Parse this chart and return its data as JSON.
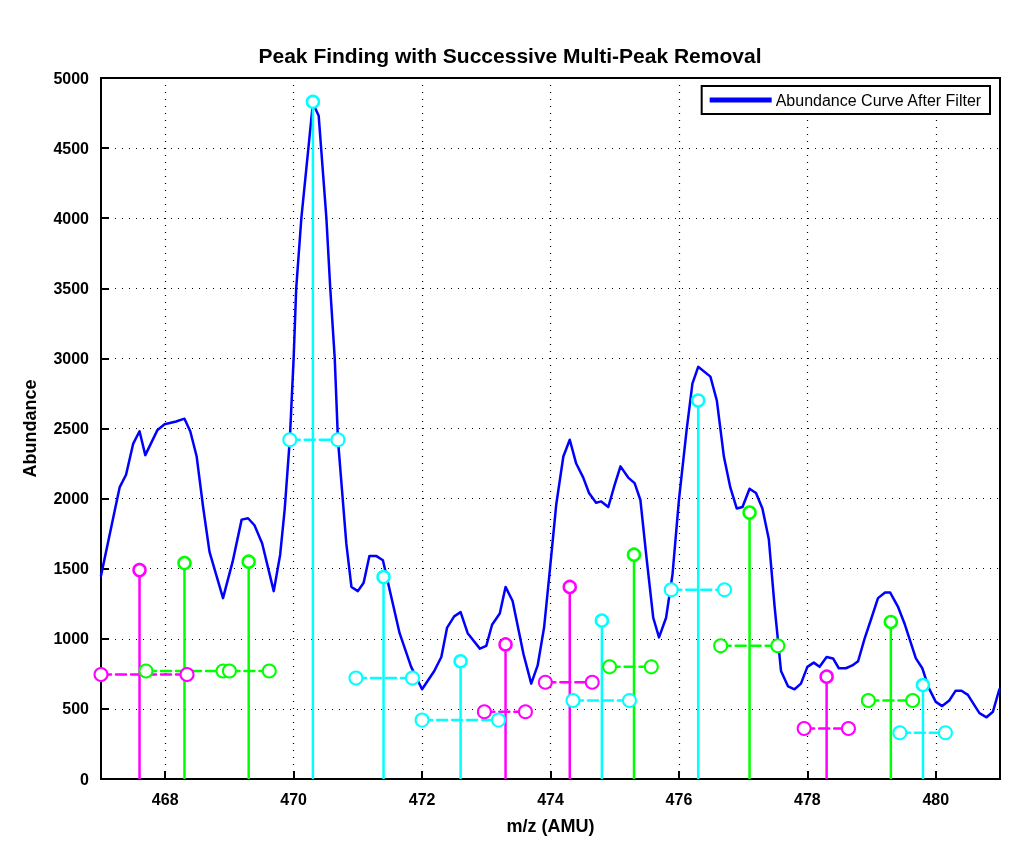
{
  "chart_data": {
    "type": "line",
    "title": "Peak Finding with Successive Multi-Peak Removal",
    "xlabel": "m/z (AMU)",
    "ylabel": "Abundance",
    "xlim": [
      467,
      481
    ],
    "xticks": [
      468,
      470,
      472,
      474,
      476,
      478,
      480
    ],
    "ylim": [
      0,
      5000
    ],
    "yticks": [
      0,
      500,
      1000,
      1500,
      2000,
      2500,
      3000,
      3500,
      4000,
      4500,
      5000
    ],
    "grid": true,
    "legend": "top right",
    "marker": "none",
    "line_style": "solid",
    "series": [
      {
        "name": "Abundance Curve After Filter",
        "color": "#0000ff",
        "x": [
          467.0,
          467.29,
          467.39,
          467.5,
          467.6,
          467.69,
          467.88,
          467.99,
          468.17,
          468.3,
          468.39,
          468.49,
          468.59,
          468.69,
          468.9,
          469.05,
          469.19,
          469.29,
          469.39,
          469.51,
          469.69,
          469.79,
          469.86,
          469.94,
          470.0,
          470.04,
          470.12,
          470.3,
          470.39,
          470.51,
          470.57,
          470.64,
          470.69,
          470.82,
          470.9,
          471.0,
          471.09,
          471.18,
          471.29,
          471.39,
          471.52,
          471.65,
          471.83,
          472.0,
          472.19,
          472.3,
          472.39,
          472.5,
          472.6,
          472.71,
          472.9,
          473.0,
          473.09,
          473.21,
          473.3,
          473.41,
          473.58,
          473.7,
          473.8,
          473.9,
          473.99,
          474.09,
          474.2,
          474.3,
          474.4,
          474.51,
          474.6,
          474.71,
          474.79,
          474.9,
          475.0,
          475.09,
          475.21,
          475.31,
          475.4,
          475.49,
          475.6,
          475.69,
          475.8,
          475.9,
          476.0,
          476.12,
          476.21,
          476.3,
          476.49,
          476.59,
          476.7,
          476.8,
          476.9,
          476.99,
          477.1,
          477.2,
          477.3,
          477.4,
          477.49,
          477.59,
          477.7,
          477.8,
          477.9,
          478.0,
          478.1,
          478.19,
          478.3,
          478.4,
          478.49,
          478.6,
          478.7,
          478.79,
          478.89,
          479.0,
          479.1,
          479.21,
          479.29,
          479.41,
          479.52,
          479.69,
          479.79,
          479.89,
          480.0,
          480.1,
          480.21,
          480.31,
          480.4,
          480.5,
          480.61,
          480.68,
          480.79,
          480.89,
          480.99
        ],
        "values": [
          1450,
          2080,
          2170,
          2390,
          2480,
          2310,
          2490,
          2530,
          2550,
          2570,
          2480,
          2300,
          1940,
          1620,
          1290,
          1550,
          1850,
          1860,
          1810,
          1680,
          1340,
          1600,
          1920,
          2420,
          3000,
          3500,
          4000,
          4820,
          4730,
          4000,
          3500,
          3000,
          2420,
          1680,
          1370,
          1340,
          1400,
          1590,
          1590,
          1560,
          1300,
          1040,
          800,
          640,
          770,
          870,
          1080,
          1160,
          1190,
          1040,
          930,
          950,
          1100,
          1180,
          1370,
          1270,
          890,
          680,
          810,
          1080,
          1490,
          1960,
          2300,
          2420,
          2250,
          2150,
          2040,
          1970,
          1980,
          1940,
          2100,
          2230,
          2150,
          2110,
          1990,
          1600,
          1150,
          1010,
          1150,
          1460,
          1990,
          2490,
          2820,
          2940,
          2870,
          2700,
          2300,
          2080,
          1930,
          1940,
          2070,
          2040,
          1930,
          1710,
          1230,
          770,
          660,
          640,
          680,
          800,
          830,
          800,
          870,
          860,
          790,
          790,
          810,
          840,
          1000,
          1150,
          1290,
          1330,
          1330,
          1230,
          1100,
          860,
          790,
          650,
          550,
          520,
          560,
          630,
          630,
          600,
          520,
          470,
          440,
          480,
          640
        ]
      },
      {
        "type": "lollipop",
        "color": "#ff00ff",
        "marker": "circle",
        "x": [
          467.6,
          473.3,
          474.3,
          478.3
        ],
        "values": [
          1490,
          960,
          1370,
          730
        ]
      },
      {
        "type": "lollipop",
        "color": "#00ff00",
        "marker": "circle",
        "x": [
          468.3,
          469.3,
          475.3,
          477.1,
          479.3
        ],
        "values": [
          1540,
          1550,
          1600,
          1900,
          1120
        ]
      },
      {
        "type": "lollipop",
        "color": "#00ffff",
        "marker": "circle",
        "x": [
          470.3,
          471.4,
          472.6,
          474.8,
          476.3,
          479.8
        ],
        "values": [
          4830,
          1440,
          840,
          1130,
          2700,
          670
        ]
      },
      {
        "type": "line",
        "color": "#ff00ff",
        "marker": "circle",
        "line_style": "dashed",
        "x": [
          467.0,
          468.34
        ],
        "values": [
          745,
          745
        ]
      },
      {
        "type": "line",
        "color": "#ff00ff",
        "marker": "circle",
        "line_style": "dashed",
        "x": [
          472.97,
          473.61
        ],
        "values": [
          480,
          480
        ]
      },
      {
        "type": "line",
        "color": "#ff00ff",
        "marker": "circle",
        "line_style": "dashed",
        "x": [
          473.92,
          474.65
        ],
        "values": [
          690,
          690
        ]
      },
      {
        "type": "line",
        "color": "#ff00ff",
        "marker": "circle",
        "line_style": "dashed",
        "x": [
          477.95,
          478.64
        ],
        "values": [
          360,
          360
        ]
      },
      {
        "type": "line",
        "color": "#00ff00",
        "marker": "circle",
        "line_style": "dashed",
        "x": [
          467.7,
          468.9
        ],
        "values": [
          770,
          770
        ]
      },
      {
        "type": "line",
        "color": "#00ff00",
        "marker": "circle",
        "line_style": "dashed",
        "x": [
          469.0,
          469.62
        ],
        "values": [
          770,
          770
        ]
      },
      {
        "type": "line",
        "color": "#00ff00",
        "marker": "circle",
        "line_style": "dashed",
        "x": [
          474.92,
          475.57
        ],
        "values": [
          800,
          800
        ]
      },
      {
        "type": "line",
        "color": "#00ff00",
        "marker": "circle",
        "line_style": "dashed",
        "x": [
          476.65,
          477.54
        ],
        "values": [
          950,
          950
        ]
      },
      {
        "type": "line",
        "color": "#00ff00",
        "marker": "circle",
        "line_style": "dashed",
        "x": [
          478.95,
          479.64
        ],
        "values": [
          560,
          560
        ]
      },
      {
        "type": "line",
        "color": "#00ffff",
        "marker": "circle",
        "line_style": "dashed",
        "x": [
          469.94,
          470.69
        ],
        "values": [
          2420,
          2420
        ]
      },
      {
        "type": "line",
        "color": "#00ffff",
        "marker": "circle",
        "line_style": "dashed",
        "x": [
          470.97,
          471.85
        ],
        "values": [
          720,
          720
        ]
      },
      {
        "type": "line",
        "color": "#00ffff",
        "marker": "circle",
        "line_style": "dashed",
        "x": [
          472.0,
          473.19
        ],
        "values": [
          420,
          420
        ]
      },
      {
        "type": "line",
        "color": "#00ffff",
        "marker": "circle",
        "line_style": "dashed",
        "x": [
          474.35,
          475.23
        ],
        "values": [
          560,
          560
        ]
      },
      {
        "type": "line",
        "color": "#00ffff",
        "marker": "circle",
        "line_style": "dashed",
        "x": [
          475.88,
          476.71
        ],
        "values": [
          1350,
          1350
        ]
      },
      {
        "type": "line",
        "color": "#00ffff",
        "marker": "circle",
        "line_style": "dashed",
        "x": [
          479.44,
          480.15
        ],
        "values": [
          330,
          330
        ]
      }
    ]
  }
}
